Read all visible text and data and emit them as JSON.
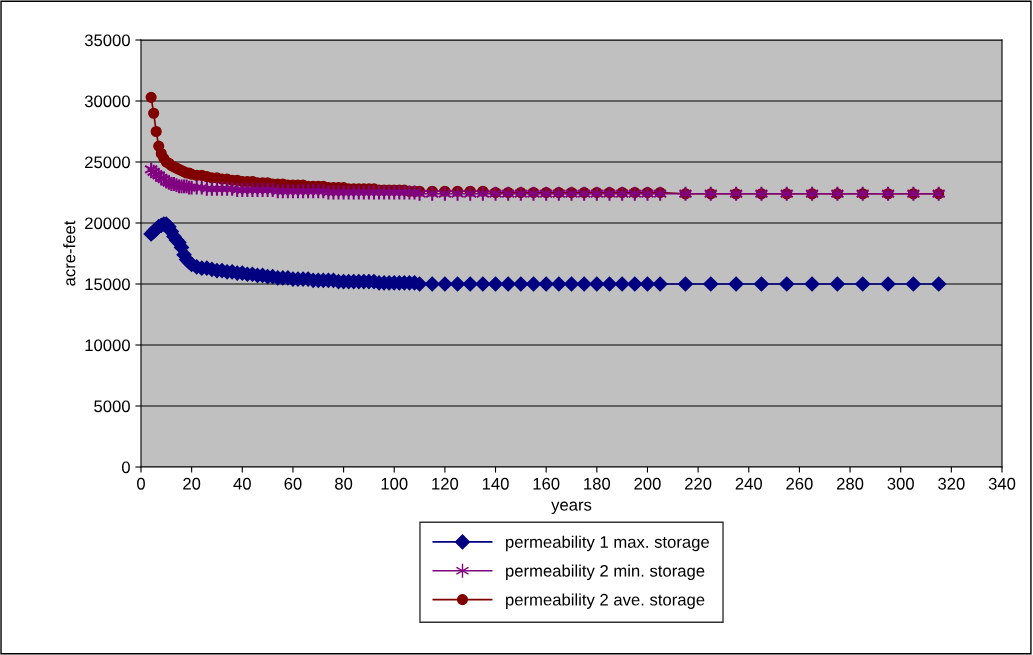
{
  "chart_data": {
    "type": "line",
    "xlabel": "years",
    "ylabel": "acre-feet",
    "x": [
      4,
      5,
      6,
      7,
      8,
      9,
      10,
      11,
      12,
      13,
      14,
      15,
      16,
      17,
      18,
      19,
      20,
      22,
      24,
      26,
      28,
      30,
      32,
      34,
      36,
      38,
      40,
      42,
      44,
      46,
      48,
      50,
      52,
      54,
      56,
      58,
      60,
      62,
      64,
      66,
      68,
      70,
      72,
      74,
      76,
      78,
      80,
      82,
      84,
      86,
      88,
      90,
      92,
      94,
      96,
      98,
      100,
      102,
      104,
      106,
      108,
      110,
      115,
      120,
      125,
      130,
      135,
      140,
      145,
      150,
      155,
      160,
      165,
      170,
      175,
      180,
      185,
      190,
      195,
      200,
      205,
      215,
      225,
      235,
      245,
      255,
      265,
      275,
      285,
      295,
      305,
      315
    ],
    "series": [
      {
        "name": "permeability 1 max. storage",
        "color": "#000080",
        "marker": "diamond",
        "values": [
          19100,
          19300,
          19500,
          19700,
          19800,
          19900,
          19900,
          19700,
          19300,
          18900,
          18600,
          18400,
          18000,
          17400,
          17000,
          16800,
          16600,
          16400,
          16300,
          16300,
          16200,
          16100,
          16100,
          16000,
          16000,
          15900,
          15900,
          15800,
          15800,
          15700,
          15700,
          15600,
          15600,
          15500,
          15500,
          15500,
          15400,
          15400,
          15400,
          15400,
          15300,
          15300,
          15300,
          15300,
          15300,
          15200,
          15200,
          15200,
          15200,
          15200,
          15200,
          15200,
          15200,
          15100,
          15100,
          15100,
          15100,
          15100,
          15100,
          15100,
          15100,
          15000,
          15000,
          15000,
          15000,
          15000,
          15000,
          15000,
          15000,
          15000,
          15000,
          15000,
          15000,
          15000,
          15000,
          15000,
          15000,
          15000,
          15000,
          15000,
          15000,
          15000,
          15000,
          15000,
          15000,
          15000,
          15000,
          15000,
          15000,
          15000,
          15000,
          15000
        ]
      },
      {
        "name": "permeability 2 min. storage",
        "color": "#800080",
        "marker": "cross",
        "values": [
          24400,
          24200,
          24000,
          23900,
          23700,
          23600,
          23400,
          23300,
          23200,
          23200,
          23100,
          23000,
          23000,
          23000,
          23000,
          22900,
          22900,
          22900,
          22900,
          22800,
          22800,
          22800,
          22800,
          22800,
          22800,
          22700,
          22700,
          22700,
          22700,
          22700,
          22700,
          22700,
          22700,
          22600,
          22600,
          22600,
          22600,
          22600,
          22600,
          22600,
          22600,
          22600,
          22600,
          22500,
          22500,
          22500,
          22500,
          22500,
          22500,
          22500,
          22500,
          22500,
          22500,
          22500,
          22500,
          22500,
          22500,
          22500,
          22500,
          22500,
          22500,
          22400,
          22400,
          22400,
          22400,
          22400,
          22400,
          22400,
          22400,
          22400,
          22400,
          22400,
          22400,
          22400,
          22400,
          22400,
          22400,
          22400,
          22400,
          22400,
          22400,
          22400,
          22400,
          22400,
          22400,
          22400,
          22400,
          22400,
          22400,
          22400,
          22400,
          22400
        ]
      },
      {
        "name": "permeability 2 ave. storage",
        "color": "#800000",
        "marker": "circle",
        "values": [
          30300,
          29000,
          27500,
          26300,
          25700,
          25300,
          25000,
          24900,
          24700,
          24600,
          24500,
          24400,
          24300,
          24200,
          24100,
          24100,
          24000,
          23900,
          23900,
          23800,
          23700,
          23700,
          23600,
          23600,
          23500,
          23500,
          23400,
          23400,
          23400,
          23300,
          23300,
          23300,
          23200,
          23200,
          23200,
          23100,
          23100,
          23100,
          23100,
          23000,
          23000,
          23000,
          23000,
          22900,
          22900,
          22900,
          22900,
          22800,
          22800,
          22800,
          22800,
          22800,
          22800,
          22700,
          22700,
          22700,
          22700,
          22700,
          22700,
          22600,
          22600,
          22600,
          22600,
          22600,
          22600,
          22600,
          22600,
          22500,
          22500,
          22500,
          22500,
          22500,
          22500,
          22500,
          22500,
          22500,
          22500,
          22500,
          22500,
          22500,
          22500,
          22400,
          22400,
          22400,
          22400,
          22400,
          22400,
          22400,
          22400,
          22400,
          22400,
          22400
        ]
      }
    ],
    "xlim": [
      0,
      340
    ],
    "xticks": [
      0,
      20,
      40,
      60,
      80,
      100,
      120,
      140,
      160,
      180,
      200,
      220,
      240,
      260,
      280,
      300,
      320,
      340
    ],
    "ylim": [
      0,
      35000
    ],
    "yticks": [
      0,
      5000,
      10000,
      15000,
      20000,
      25000,
      30000,
      35000
    ],
    "grid": "y",
    "legend": "bottom",
    "line_style": "solid"
  }
}
